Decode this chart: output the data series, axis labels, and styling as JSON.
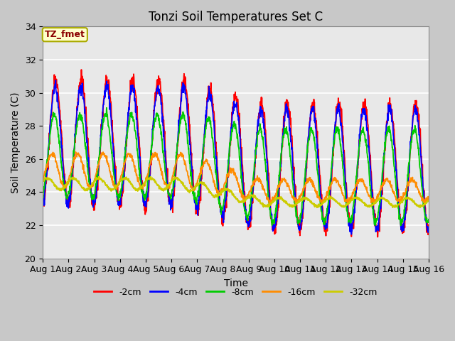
{
  "title": "Tonzi Soil Temperatures Set C",
  "xlabel": "Time",
  "ylabel": "Soil Temperature (C)",
  "ylim": [
    20,
    34
  ],
  "xlim_days": [
    0,
    15
  ],
  "x_tick_labels": [
    "Aug 1",
    "Aug 2",
    "Aug 3",
    "Aug 4",
    "Aug 5",
    "Aug 6",
    "Aug 7",
    "Aug 8",
    "Aug 9",
    "Aug 10",
    "Aug 11",
    "Aug 12",
    "Aug 13",
    "Aug 14",
    "Aug 15",
    "Aug 16"
  ],
  "annotation_text": "TZ_fmet",
  "annotation_color": "#8B0000",
  "annotation_bg": "#FFFFCC",
  "annotation_border": "#AAAA00",
  "series_colors": [
    "#FF0000",
    "#0000FF",
    "#00CC00",
    "#FF8C00",
    "#CCCC00"
  ],
  "series_labels": [
    "-2cm",
    "-4cm",
    "-8cm",
    "-16cm",
    "-32cm"
  ],
  "plot_bg": "#E8E8E8",
  "fig_bg": "#C8C8C8",
  "grid_color": "#FFFFFF",
  "figsize": [
    6.4,
    4.8
  ],
  "dpi": 100
}
